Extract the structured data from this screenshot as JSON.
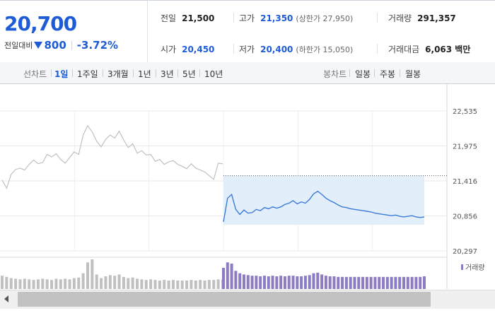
{
  "quote": {
    "price": "20,700",
    "change_label": "전일대비",
    "change_direction": "down",
    "change_amount": "800",
    "change_percent": "-3.72%",
    "stats": {
      "prev_close": {
        "label": "전일",
        "value": "21,500"
      },
      "open": {
        "label": "시가",
        "value": "20,450"
      },
      "high": {
        "label": "고가",
        "value": "21,350",
        "sub": "(상한가 27,950)"
      },
      "low": {
        "label": "저가",
        "value": "20,400",
        "sub": "(하한가 15,050)"
      },
      "volume": {
        "label": "거래량",
        "value": "291,357"
      },
      "turnover": {
        "label": "거래대금",
        "value": "6,063 백만"
      }
    }
  },
  "tabs": {
    "line_label": "선차트",
    "line_periods": [
      "1일",
      "1주일",
      "3개월",
      "1년",
      "3년",
      "5년",
      "10년"
    ],
    "active_period": "1일",
    "candle_label": "봉차트",
    "candle_periods": [
      "일봉",
      "주봉",
      "월봉"
    ]
  },
  "colors": {
    "accent": "#1d5cd6",
    "prev_day_line": "#c0c0c0",
    "today_line": "#3b7bd8",
    "today_fill": "#e3eefb",
    "volume_prev": "#c0c0c0",
    "volume_today": "#8e7cc3"
  },
  "chart_data": {
    "type": "line",
    "ylim": [
      20297,
      22535
    ],
    "yticks": [
      "22,535",
      "21,975",
      "21,416",
      "20,856",
      "20,297"
    ],
    "prev_close_ref": 21500,
    "legend": [
      "거래량"
    ],
    "series": [
      {
        "values": [
          21430,
          21300,
          21520,
          21600,
          21620,
          21590,
          21680,
          21750,
          21690,
          21710,
          21840,
          21800,
          21850,
          21760,
          21700,
          21790,
          21880,
          21840,
          22150,
          22300,
          22200,
          22050,
          21960,
          22080,
          22150,
          22100,
          22210,
          22070,
          21950,
          22010,
          21860,
          21900,
          21830,
          21840,
          21730,
          21760,
          21680,
          21720,
          21740,
          21680,
          21650,
          21610,
          21690,
          21620,
          21590,
          21560,
          21500,
          21440,
          21700,
          21690
        ]
      },
      {
        "values": [
          20760,
          21140,
          21200,
          20960,
          20880,
          20950,
          20900,
          20910,
          20960,
          20940,
          20990,
          20970,
          21000,
          20980,
          21000,
          21040,
          21060,
          21100,
          21050,
          21080,
          21060,
          21120,
          21210,
          21250,
          21200,
          21140,
          21100,
          21070,
          21030,
          21000,
          20990,
          20970,
          20960,
          20950,
          20940,
          20930,
          20920,
          20900,
          20890,
          20880,
          20870,
          20860,
          20870,
          20850,
          20840,
          20850,
          20860,
          20840,
          20830,
          20840
        ]
      }
    ],
    "volume": {
      "prev": [
        22,
        20,
        18,
        17,
        16,
        17,
        16,
        15,
        16,
        17,
        16,
        15,
        17,
        16,
        17,
        16,
        18,
        19,
        26,
        44,
        49,
        24,
        18,
        21,
        23,
        22,
        24,
        20,
        18,
        19,
        17,
        16,
        15,
        16,
        15,
        14,
        15,
        14,
        15,
        14,
        14,
        14,
        15,
        14,
        15,
        14,
        15,
        15,
        16,
        16
      ],
      "today": [
        35,
        44,
        42,
        30,
        26,
        24,
        23,
        22,
        22,
        21,
        22,
        21,
        22,
        21,
        22,
        21,
        22,
        22,
        21,
        21,
        22,
        23,
        26,
        27,
        24,
        22,
        21,
        21,
        20,
        20,
        20,
        20,
        20,
        20,
        20,
        20,
        20,
        20,
        20,
        20,
        20,
        20,
        20,
        20,
        20,
        20,
        20,
        20,
        20,
        21
      ]
    }
  }
}
